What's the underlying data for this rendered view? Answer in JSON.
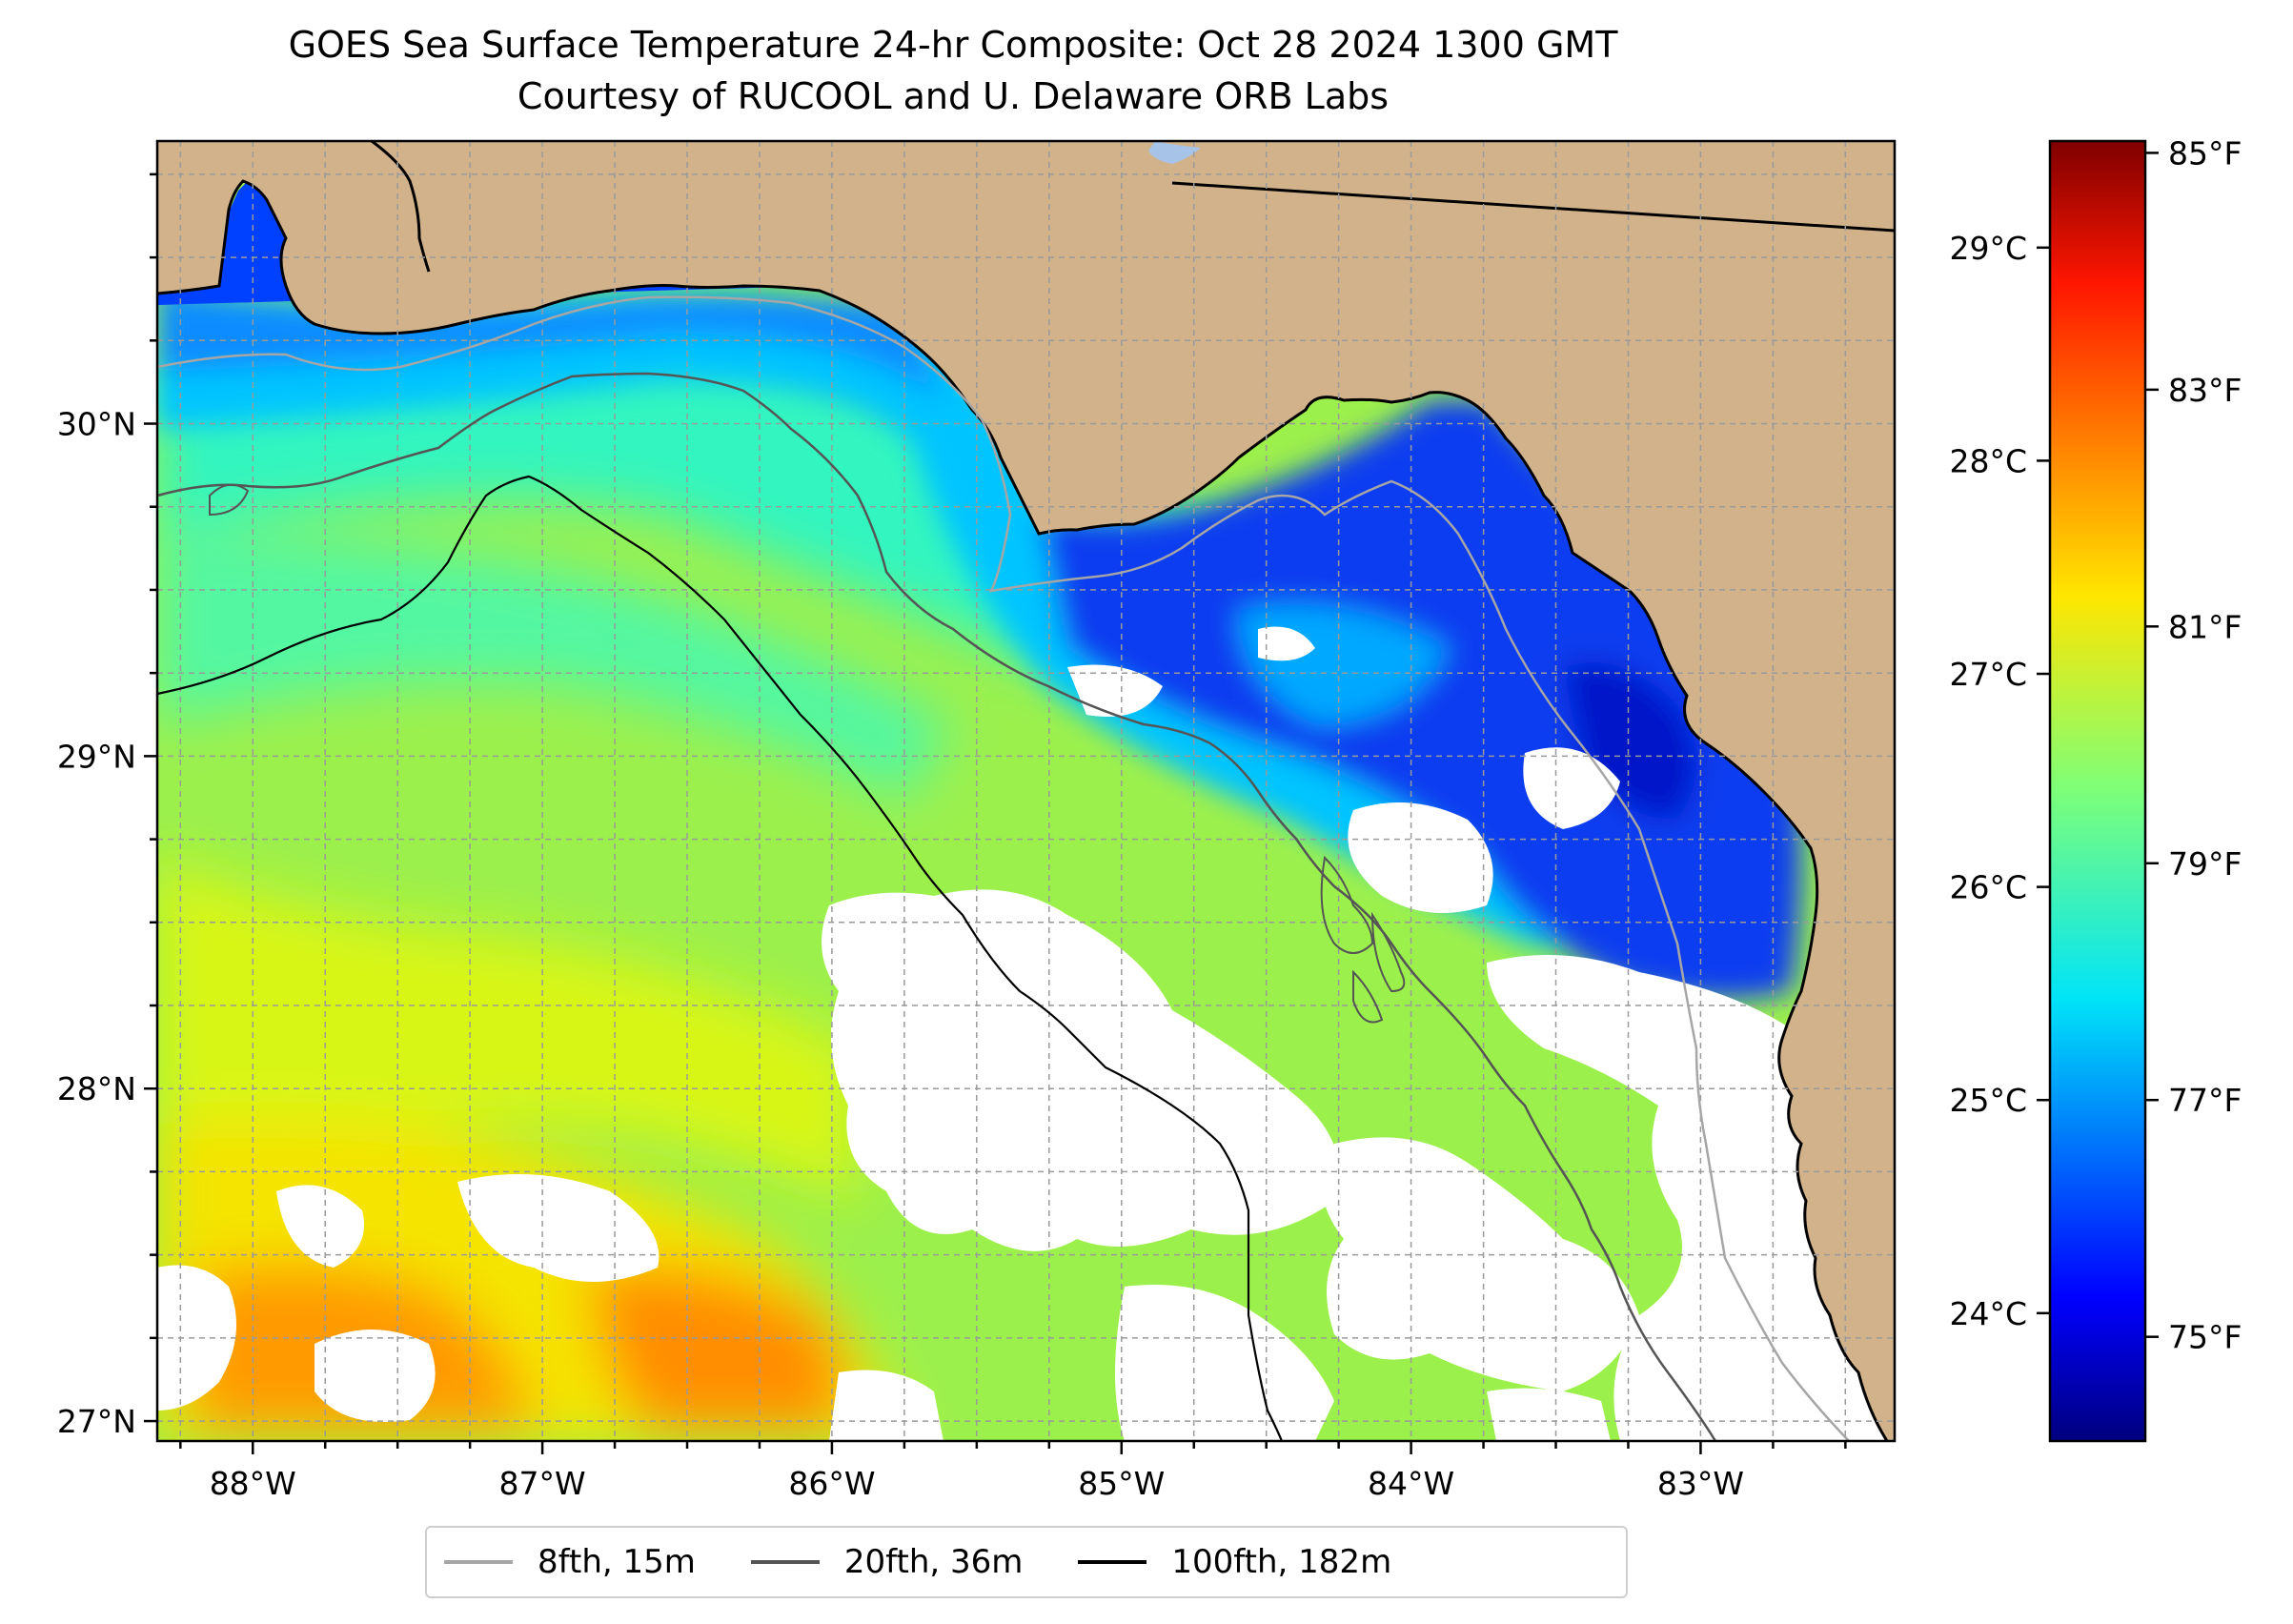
{
  "title": "GOES Sea Surface Temperature 24-hr Composite: Oct 28 2024 1300 GMT",
  "subtitle": "Courtesy of RUCOOL and U. Delaware ORB Labs",
  "map": {
    "lon_range": [
      -88.33,
      -82.33
    ],
    "lat_range": [
      26.94,
      30.85
    ],
    "lon_ticks": [
      {
        "value": -88,
        "label": "88°W"
      },
      {
        "value": -87,
        "label": "87°W"
      },
      {
        "value": -86,
        "label": "86°W"
      },
      {
        "value": -85,
        "label": "85°W"
      },
      {
        "value": -84,
        "label": "84°W"
      },
      {
        "value": -83,
        "label": "83°W"
      }
    ],
    "lat_ticks": [
      {
        "value": 27,
        "label": "27°N"
      },
      {
        "value": 28,
        "label": "28°N"
      },
      {
        "value": 29,
        "label": "29°N"
      },
      {
        "value": 30,
        "label": "30°N"
      }
    ],
    "land_color": "#d1b28a",
    "no_data_color": "#ffffff",
    "gridlines": true
  },
  "colorbar": {
    "colormap": "jet",
    "celsius_range": [
      23.4,
      29.5
    ],
    "celsius_ticks": [
      {
        "value": 24,
        "label": "24°C"
      },
      {
        "value": 25,
        "label": "25°C"
      },
      {
        "value": 26,
        "label": "26°C"
      },
      {
        "value": 27,
        "label": "27°C"
      },
      {
        "value": 28,
        "label": "28°C"
      },
      {
        "value": 29,
        "label": "29°C"
      }
    ],
    "fahrenheit_ticks": [
      {
        "value": 75,
        "label": "75°F"
      },
      {
        "value": 77,
        "label": "77°F"
      },
      {
        "value": 79,
        "label": "79°F"
      },
      {
        "value": 81,
        "label": "81°F"
      },
      {
        "value": 83,
        "label": "83°F"
      },
      {
        "value": 85,
        "label": "85°F"
      }
    ]
  },
  "legend": {
    "placement": "bottom-center",
    "items": [
      {
        "label": "8fth, 15m",
        "color": "#a6a6a6"
      },
      {
        "label": "20fth, 36m",
        "color": "#555555"
      },
      {
        "label": "100fth, 182m",
        "color": "#000000"
      }
    ]
  }
}
